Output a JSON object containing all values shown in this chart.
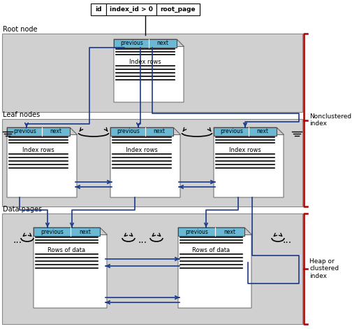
{
  "bg_color": "#ffffff",
  "panel_color": "#d0d0d0",
  "doc_color": "#ffffff",
  "header_color": "#6bb8d4",
  "line_color_dark": "#1a3a8a",
  "line_color_black": "#000000",
  "red_bracket_color": "#aa0000",
  "table_header": [
    "id",
    "index_id > 0",
    "root_page"
  ],
  "section_labels": [
    "Root node",
    "Leaf nodes",
    "Data pages"
  ],
  "right_label_1": "Nonclustered\nindex",
  "right_label_2": "Heap or\nclustered\nindex",
  "doc_label_index": "Index rows",
  "doc_label_data": "Rows of data"
}
